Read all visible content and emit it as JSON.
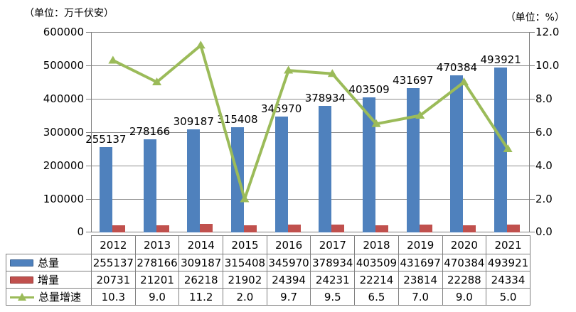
{
  "units": {
    "left": "（单位：万千伏安）",
    "right": "（单位：%）"
  },
  "chart_data": {
    "type": "bar+line",
    "title": "",
    "categories": [
      "2012",
      "2013",
      "2014",
      "2015",
      "2016",
      "2017",
      "2018",
      "2019",
      "2020",
      "2021"
    ],
    "series": [
      {
        "name": "总量",
        "type": "bar",
        "axis": "left",
        "color": "#4F81BD",
        "values": [
          255137,
          278166,
          309187,
          315408,
          345970,
          378934,
          403509,
          431697,
          470384,
          493921
        ],
        "data_labels_shown": true
      },
      {
        "name": "增量",
        "type": "bar",
        "axis": "left",
        "color": "#C0504D",
        "values": [
          20731,
          21201,
          26218,
          21902,
          24394,
          24231,
          22214,
          23814,
          22288,
          24334
        ],
        "data_labels_shown": false
      },
      {
        "name": "总量增速",
        "type": "line",
        "axis": "right",
        "color": "#9BBB59",
        "marker": "triangle",
        "values": [
          10.3,
          9.0,
          11.2,
          2.0,
          9.7,
          9.5,
          6.5,
          7.0,
          9.0,
          5.0
        ],
        "data_labels_shown": false
      }
    ],
    "left_axis": {
      "min": 0,
      "max": 600000,
      "ticks": [
        "600000",
        "500000",
        "400000",
        "300000",
        "200000",
        "100000",
        "0"
      ]
    },
    "right_axis": {
      "min": 0,
      "max": 12,
      "ticks": [
        "12.0",
        "10.0",
        "8.0",
        "6.0",
        "4.0",
        "2.0",
        "0.0"
      ]
    },
    "grid": true,
    "legend_position": "data-table-left",
    "colors": {
      "grid": "#8C8C8C",
      "axis": "#808080",
      "table_border": "#808080",
      "text": "#000000",
      "background": "#FFFFFF"
    }
  }
}
